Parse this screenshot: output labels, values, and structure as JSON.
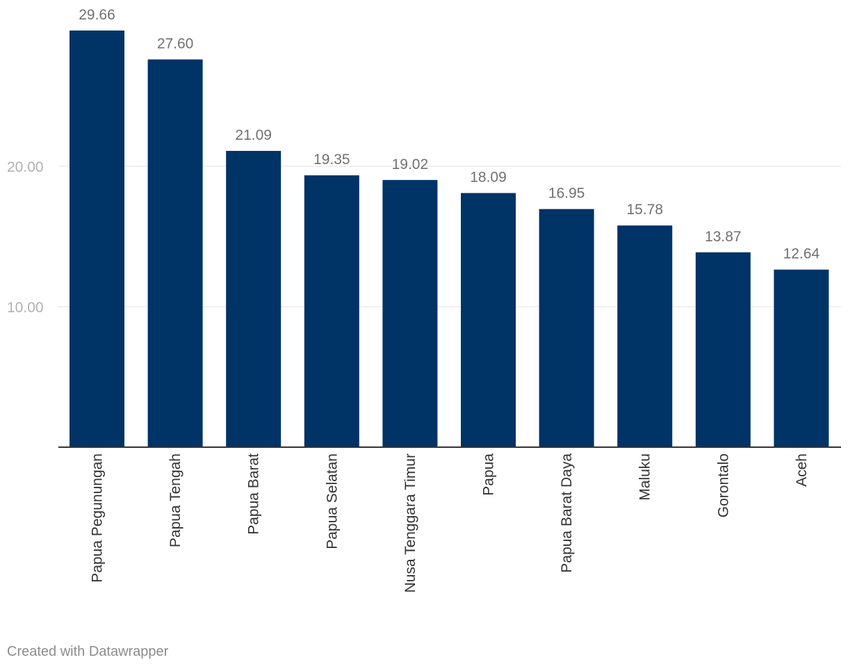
{
  "chart_data": {
    "type": "bar",
    "categories": [
      "Papua Pegunungan",
      "Papua Tengah",
      "Papua Barat",
      "Papua Selatan",
      "Nusa Tenggara Timur",
      "Papua",
      "Papua Barat Daya",
      "Maluku",
      "Gorontalo",
      "Aceh"
    ],
    "values": [
      29.66,
      27.6,
      21.09,
      19.35,
      19.02,
      18.09,
      16.95,
      15.78,
      13.87,
      12.64
    ],
    "value_labels": [
      "29.66",
      "27.60",
      "21.09",
      "19.35",
      "19.02",
      "18.09",
      "16.95",
      "15.78",
      "13.87",
      "12.64"
    ],
    "yticks": [
      10,
      20
    ],
    "ytick_labels": [
      "10.00",
      "20.00"
    ],
    "ylim": [
      0,
      30
    ],
    "grid": true,
    "bar_color": "#003366",
    "title": "",
    "xlabel": "",
    "ylabel": ""
  },
  "footer": {
    "credit": "Created with Datawrapper"
  }
}
